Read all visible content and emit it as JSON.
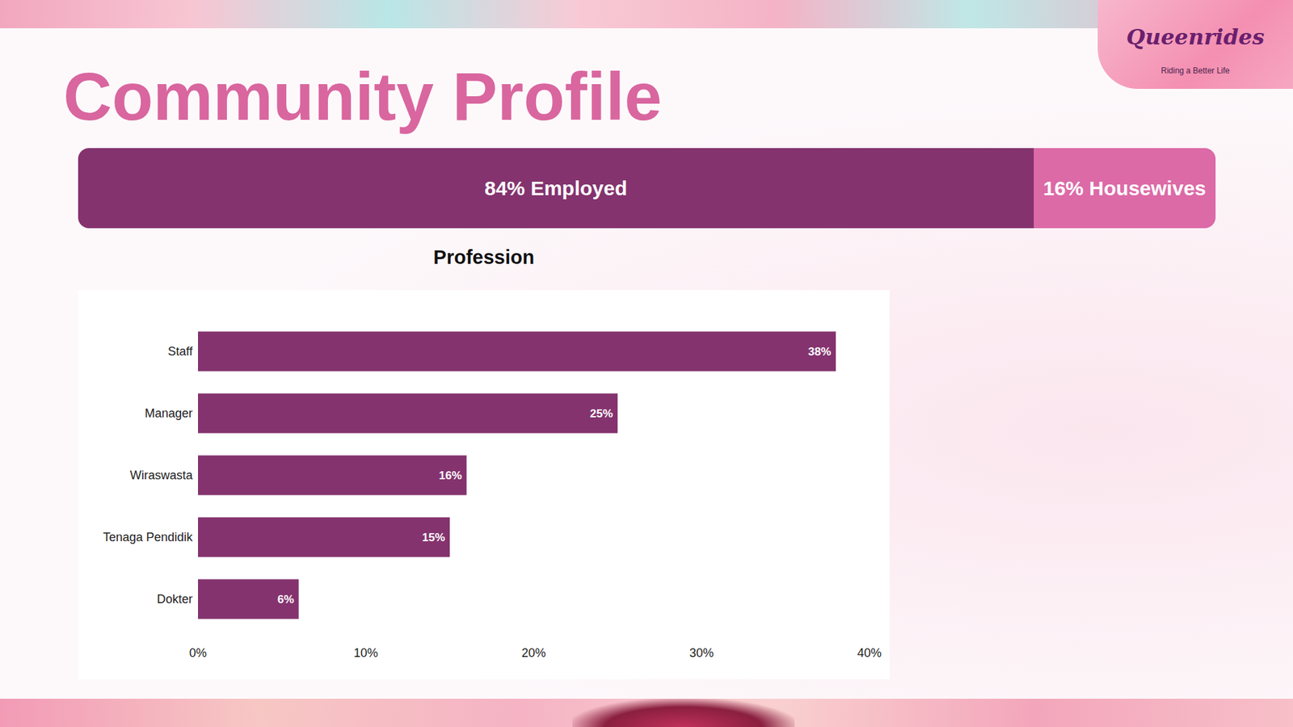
{
  "title": "Community Profile",
  "logo": {
    "name": "Queenrides",
    "tagline": "Riding a Better Life"
  },
  "employment": {
    "segments": [
      {
        "label": "84% Employed",
        "value": 84,
        "color": "#84336e"
      },
      {
        "label": "16% Housewives",
        "value": 16,
        "color": "#dc6aa7"
      }
    ]
  },
  "chart_data": {
    "type": "bar",
    "orientation": "horizontal",
    "title": "Profession",
    "categories": [
      "Staff",
      "Manager",
      "Wiraswasta",
      "Tenaga Pendidik",
      "Dokter"
    ],
    "values": [
      38,
      25,
      16,
      15,
      6
    ],
    "value_labels": [
      "38%",
      "25%",
      "16%",
      "15%",
      "6%"
    ],
    "color": "#84336e",
    "xlim": [
      0,
      40
    ],
    "xticks": [
      {
        "value": 0,
        "label": "0%"
      },
      {
        "value": 10,
        "label": "10%"
      },
      {
        "value": 20,
        "label": "20%"
      },
      {
        "value": 30,
        "label": "30%"
      },
      {
        "value": 40,
        "label": "40%"
      }
    ],
    "grid": false,
    "data_labels": true
  }
}
